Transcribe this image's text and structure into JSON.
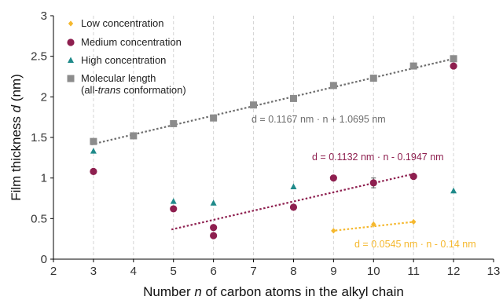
{
  "chart_data": {
    "type": "scatter",
    "xlabel": "Number n of carbon atoms in the alkyl chain",
    "xlabel_parts": [
      "Number ",
      "n",
      " of carbon atoms in the alkyl chain"
    ],
    "ylabel": "Film thickness d (nm)",
    "ylabel_parts": [
      "Film thickness ",
      "d",
      " (nm)"
    ],
    "xlim": [
      2,
      13
    ],
    "ylim": [
      0,
      3
    ],
    "xticks": [
      2,
      3,
      4,
      5,
      6,
      7,
      8,
      9,
      10,
      11,
      12,
      13
    ],
    "yticks": [
      0,
      0.5,
      1,
      1.5,
      2,
      2.5,
      3
    ],
    "ytick_labels": [
      "0",
      "0.5",
      "1",
      "1.5",
      "2",
      "2.5",
      "3"
    ],
    "grid": "vertical dashed",
    "legend_position": "top-left",
    "series": [
      {
        "name": "Low concentration",
        "marker": "diamond",
        "color": "#F5B82E",
        "x": [
          9,
          10,
          11
        ],
        "y": [
          0.35,
          0.43,
          0.46
        ]
      },
      {
        "name": "Medium concentration",
        "marker": "circle",
        "color": "#8E1F4F",
        "x": [
          3,
          5,
          6,
          6,
          8,
          9,
          10,
          11,
          12
        ],
        "y": [
          1.08,
          0.62,
          0.39,
          0.29,
          0.64,
          1.0,
          0.94,
          1.02,
          2.38
        ],
        "error": [
          0,
          0,
          0,
          0,
          0,
          0,
          0.06,
          0,
          0
        ]
      },
      {
        "name": "High concentration",
        "marker": "triangle",
        "color": "#1F8A8A",
        "x": [
          3,
          5,
          6,
          8,
          12
        ],
        "y": [
          1.33,
          0.71,
          0.69,
          0.89,
          0.84
        ]
      },
      {
        "name": "Molecular length",
        "name_line2_parts": [
          "(all-",
          "trans",
          " conformation)"
        ],
        "marker": "square",
        "color": "#8C8C8C",
        "x": [
          3,
          4,
          5,
          6,
          7,
          8,
          9,
          10,
          11,
          12
        ],
        "y": [
          1.45,
          1.52,
          1.67,
          1.74,
          1.9,
          1.98,
          2.14,
          2.23,
          2.38,
          2.47
        ]
      }
    ],
    "fits": [
      {
        "series": "Molecular length",
        "equation": "d = 0.1167 nm · n + 1.0695 nm",
        "slope": 0.1167,
        "intercept": 1.0695,
        "x_range": [
          3,
          12
        ],
        "color": "#6E6E6E"
      },
      {
        "series": "Medium concentration",
        "equation": "d = 0.1132 nm · n - 0.1947 nm",
        "slope": 0.1132,
        "intercept": -0.1947,
        "x_range": [
          5,
          11
        ],
        "color": "#8E1F4F"
      },
      {
        "series": "Low concentration",
        "equation": "d = 0.0545 nm · n - 0.14 nm",
        "slope": 0.0545,
        "intercept": -0.14,
        "x_range": [
          9,
          11
        ],
        "color": "#F5B82E"
      }
    ]
  }
}
